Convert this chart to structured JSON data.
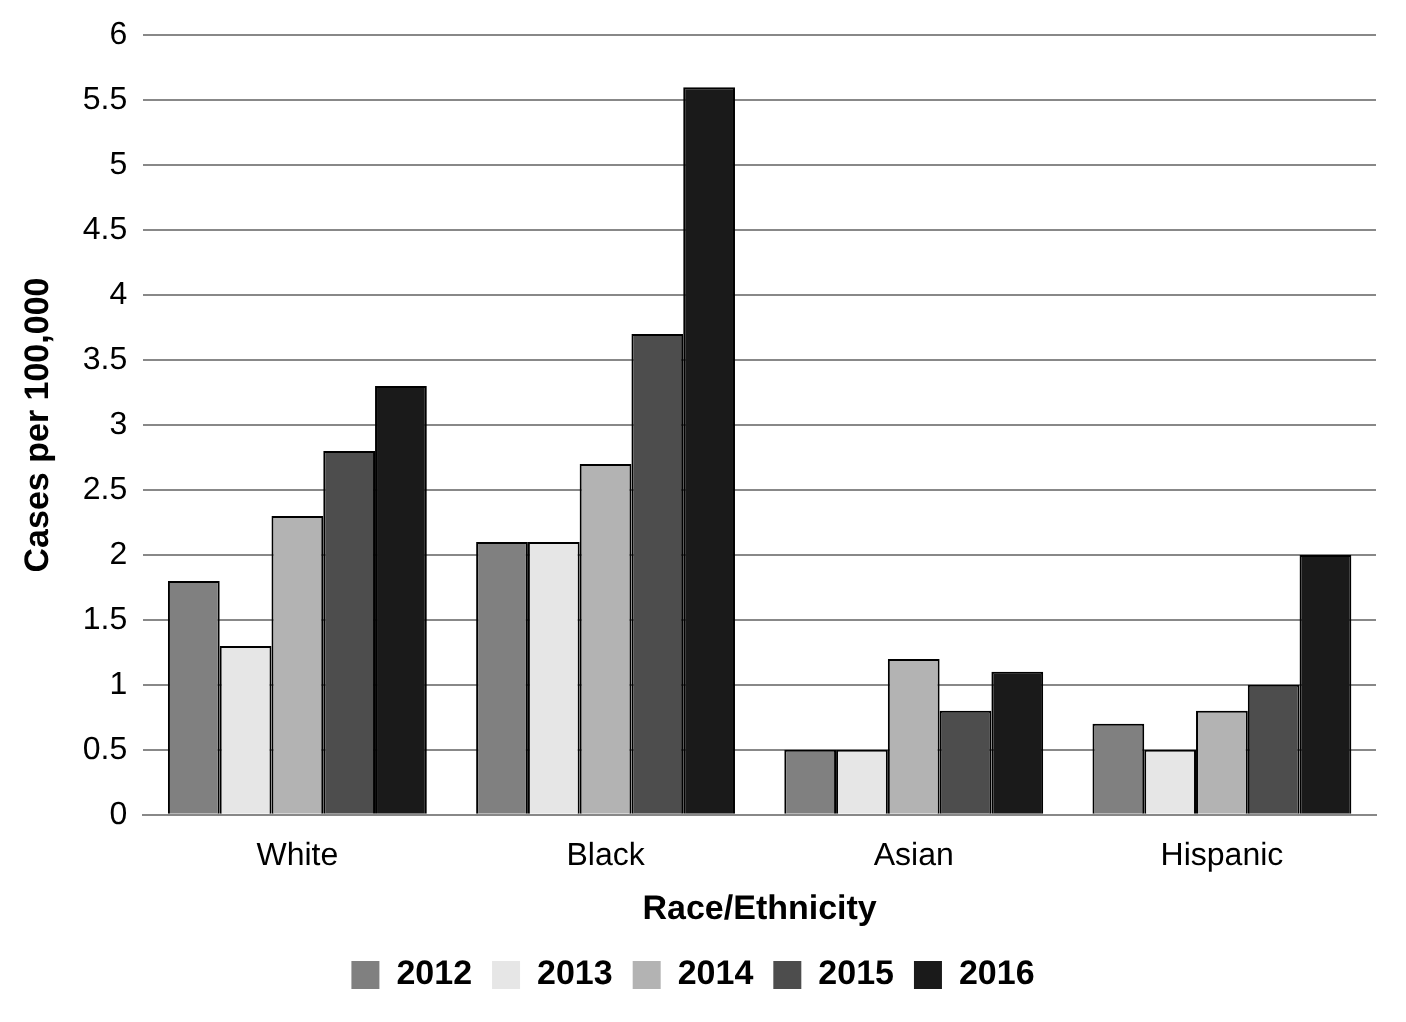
{
  "chart_data": {
    "type": "bar",
    "xlabel": "Race/Ethnicity",
    "ylabel": "Cases per 100,000",
    "categories": [
      "White",
      "Black",
      "Asian",
      "Hispanic"
    ],
    "series": [
      {
        "name": "2012",
        "color": "#808080",
        "values": [
          1.8,
          2.1,
          0.5,
          0.7
        ]
      },
      {
        "name": "2013",
        "color": "#e6e6e6",
        "values": [
          1.3,
          2.1,
          0.5,
          0.5
        ]
      },
      {
        "name": "2014",
        "color": "#b3b3b3",
        "values": [
          2.3,
          2.7,
          1.2,
          0.8
        ]
      },
      {
        "name": "2015",
        "color": "#4d4d4d",
        "values": [
          2.8,
          3.7,
          0.8,
          1.0
        ]
      },
      {
        "name": "2016",
        "color": "#1a1a1a",
        "values": [
          3.3,
          5.6,
          1.1,
          2.0
        ]
      }
    ],
    "ylim": [
      0,
      6
    ],
    "yticks": [
      0,
      0.5,
      1,
      1.5,
      2,
      2.5,
      3,
      3.5,
      4,
      4.5,
      5,
      5.5,
      6
    ],
    "grid": "y",
    "legend": "bottom"
  }
}
